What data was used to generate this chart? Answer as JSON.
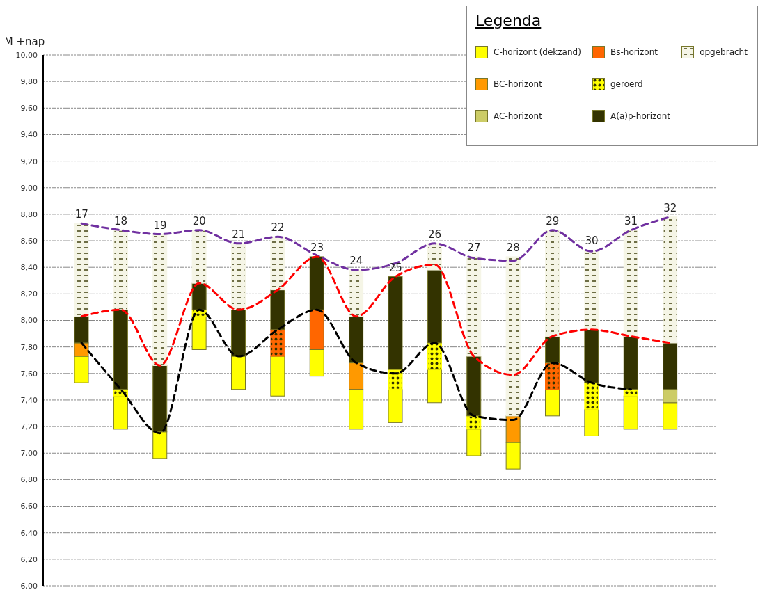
{
  "chart_data": {
    "type": "bar",
    "legend_title": "Legenda",
    "ylabel": "M +nap",
    "categories": [
      "17",
      "18",
      "19",
      "20",
      "21",
      "22",
      "23",
      "24",
      "25",
      "26",
      "27",
      "28",
      "29",
      "30",
      "31",
      "32"
    ],
    "series": [
      {
        "name": "C-horizont (dekzand)",
        "color": "#ffff00",
        "base": [
          7.53,
          7.18,
          6.96,
          7.78,
          7.48,
          7.43,
          7.58,
          7.18,
          7.23,
          7.38,
          6.98,
          6.88,
          7.28,
          7.13,
          7.18,
          7.18
        ],
        "values": [
          0.2,
          0.25,
          0.2,
          0.25,
          0.25,
          0.3,
          0.2,
          0.3,
          0.25,
          0.25,
          0.2,
          0.2,
          0.2,
          0.2,
          0.25,
          0.2
        ]
      },
      {
        "name": "BC-horizont",
        "color": "#ff9900",
        "base": [
          7.73,
          null,
          null,
          null,
          null,
          null,
          null,
          7.48,
          null,
          null,
          null,
          7.08,
          null,
          null,
          null,
          null
        ],
        "values": [
          0.1,
          null,
          null,
          null,
          null,
          null,
          null,
          0.2,
          null,
          null,
          null,
          0.2,
          null,
          null,
          null,
          null
        ]
      },
      {
        "name": "AC-horizont",
        "color": "#cccc66",
        "base": [
          null,
          null,
          null,
          null,
          null,
          null,
          null,
          null,
          null,
          null,
          null,
          null,
          null,
          null,
          null,
          7.38
        ],
        "values": [
          null,
          null,
          null,
          null,
          null,
          null,
          null,
          null,
          null,
          null,
          null,
          null,
          null,
          null,
          null,
          0.1
        ]
      },
      {
        "name": "Bs-horizont",
        "color": "#ff6600",
        "base": [
          null,
          null,
          null,
          null,
          null,
          null,
          7.78,
          null,
          null,
          null,
          null,
          null,
          null,
          null,
          null,
          null
        ],
        "values": [
          null,
          null,
          null,
          null,
          null,
          null,
          0.3,
          null,
          null,
          null,
          null,
          null,
          null,
          null,
          null,
          null
        ]
      },
      {
        "name": "geroerd",
        "color": "#ffff00",
        "marker": "circle",
        "colors": [
          "#ffff00",
          "#ffff00",
          "#ffff00",
          "#ffff00",
          "#ffff00",
          "#ff6600",
          "#ffff00",
          "#ffff00",
          "#ffff00",
          "#ffff00",
          "#ffff00",
          "#ffff00",
          "#ff6600",
          "#ffff00",
          "#ffff00",
          "#ffff00"
        ],
        "base": [
          null,
          7.43,
          null,
          8.03,
          null,
          7.73,
          null,
          null,
          7.48,
          7.63,
          7.18,
          null,
          7.48,
          7.33,
          7.43,
          null
        ],
        "values": [
          null,
          0.05,
          null,
          0.05,
          null,
          0.2,
          null,
          null,
          0.15,
          0.2,
          0.1,
          null,
          0.2,
          0.2,
          0.05,
          null
        ]
      },
      {
        "name": "A(a)p-horizont",
        "color": "#333300",
        "base": [
          7.83,
          7.48,
          7.16,
          8.08,
          7.73,
          7.93,
          8.08,
          7.68,
          7.63,
          7.83,
          7.28,
          null,
          7.68,
          7.53,
          7.48,
          7.48
        ],
        "values": [
          0.2,
          0.6,
          0.5,
          0.2,
          0.35,
          0.3,
          0.4,
          0.35,
          0.7,
          0.55,
          0.45,
          null,
          0.2,
          0.4,
          0.4,
          0.35
        ]
      },
      {
        "name": "opgebracht",
        "color": "#f5f5e6",
        "line_style": "dashed",
        "base": [
          8.03,
          8.08,
          7.66,
          8.28,
          8.08,
          8.23,
          null,
          8.03,
          null,
          8.38,
          7.73,
          7.28,
          7.88,
          7.93,
          7.88,
          7.83
        ],
        "values": [
          0.7,
          0.6,
          0.99,
          0.4,
          0.5,
          0.4,
          null,
          0.35,
          null,
          0.2,
          0.75,
          1.2,
          0.8,
          0.6,
          0.8,
          0.95
        ]
      },
      {
        "type": "line",
        "color": "#7030a0",
        "line_style": "dashed",
        "values": [
          8.73,
          8.68,
          8.65,
          8.68,
          8.58,
          8.63,
          8.49,
          8.38,
          8.43,
          8.58,
          8.47,
          8.45,
          8.68,
          8.52,
          8.68,
          8.78
        ]
      },
      {
        "type": "line",
        "color": "#ff0000",
        "line_style": "dashed",
        "values": [
          8.03,
          8.08,
          7.66,
          8.28,
          8.08,
          8.23,
          8.48,
          8.03,
          8.33,
          8.42,
          7.73,
          7.59,
          7.88,
          7.93,
          7.88,
          7.83
        ]
      },
      {
        "type": "line",
        "color": "#000000",
        "line_style": "dashed",
        "values": [
          7.83,
          7.48,
          7.15,
          8.08,
          7.73,
          7.93,
          8.08,
          7.68,
          7.6,
          7.83,
          7.28,
          7.25,
          7.68,
          7.53,
          7.48,
          null
        ]
      }
    ],
    "marker": "none",
    "ylim": [
      6,
      10
    ],
    "yticks": [
      {
        "value": 6,
        "label": "6,00"
      },
      {
        "value": 6.2,
        "label": "6,20"
      },
      {
        "value": 6.4,
        "label": "6,40"
      },
      {
        "value": 6.6,
        "label": "6,60"
      },
      {
        "value": 6.8,
        "label": "6,80"
      },
      {
        "value": 7,
        "label": "7,00"
      },
      {
        "value": 7.2,
        "label": "7,20"
      },
      {
        "value": 7.4,
        "label": "7,40"
      },
      {
        "value": 7.6,
        "label": "7,60"
      },
      {
        "value": 7.8,
        "label": "7,80"
      },
      {
        "value": 8,
        "label": "8,00"
      },
      {
        "value": 8.2,
        "label": "8,20"
      },
      {
        "value": 8.4,
        "label": "8,40"
      },
      {
        "value": 8.6,
        "label": "8,60"
      },
      {
        "value": 8.8,
        "label": "8,80"
      },
      {
        "value": 9,
        "label": "9,00"
      },
      {
        "value": 9.2,
        "label": "9,20"
      },
      {
        "value": 9.4,
        "label": "9,40"
      },
      {
        "value": 9.6,
        "label": "9,60"
      },
      {
        "value": 9.8,
        "label": "9,80"
      },
      {
        "value": 10,
        "label": "10,00"
      }
    ],
    "grid": "y",
    "legend": "top right",
    "tick_labels": "y"
  }
}
